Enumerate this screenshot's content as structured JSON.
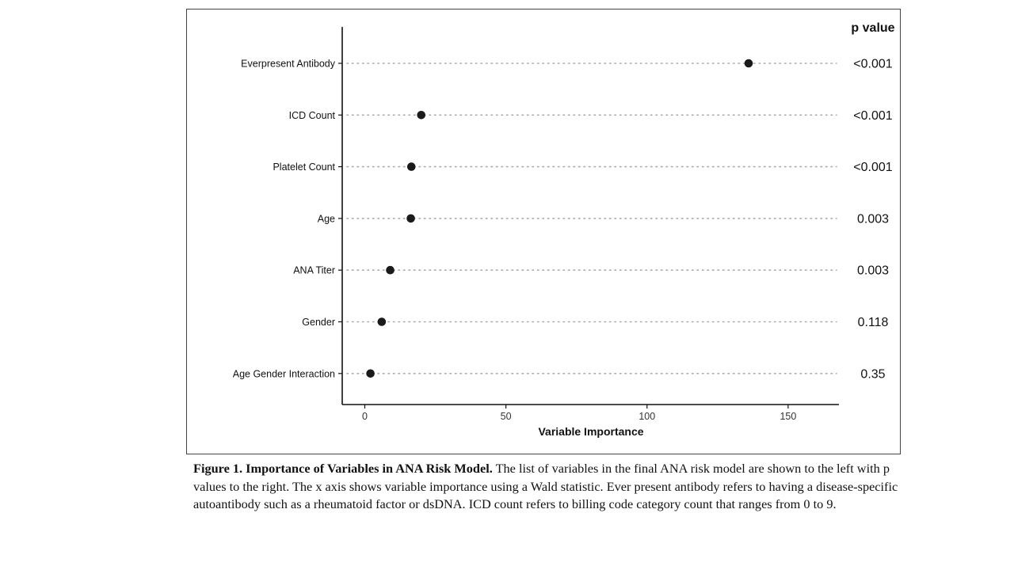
{
  "chart_data": {
    "type": "dot",
    "categories": [
      "Everpresent Antibody",
      "ICD Count",
      "Platelet Count",
      "Age",
      "ANA Titer",
      "Gender",
      "Age Gender Interaction"
    ],
    "values": [
      136,
      20,
      16.5,
      16.3,
      9,
      6,
      2
    ],
    "p_values": [
      "<0.001",
      "<0.001",
      "<0.001",
      "0.003",
      "0.003",
      "0.118",
      "0.35"
    ],
    "p_header": "p value",
    "xlabel": "Variable Importance",
    "ylabel": "",
    "xlim": [
      -8,
      168
    ],
    "xticks": [
      0,
      50,
      100,
      150
    ],
    "grid": false,
    "guide_lines": "dotted",
    "point_color": "#1a1a1a",
    "guide_color": "#aaaaaa"
  },
  "caption": {
    "title": "Figure 1. Importance of Variables in ANA Risk Model.",
    "text": " The list of variables in the final ANA risk model are shown to the left with p values to the right. The x axis shows variable importance using a Wald statistic. Ever present antibody refers to having a disease-specific autoantibody such as a rheumatoid factor or dsDNA. ICD count refers to billing code category count that ranges from 0 to 9."
  }
}
